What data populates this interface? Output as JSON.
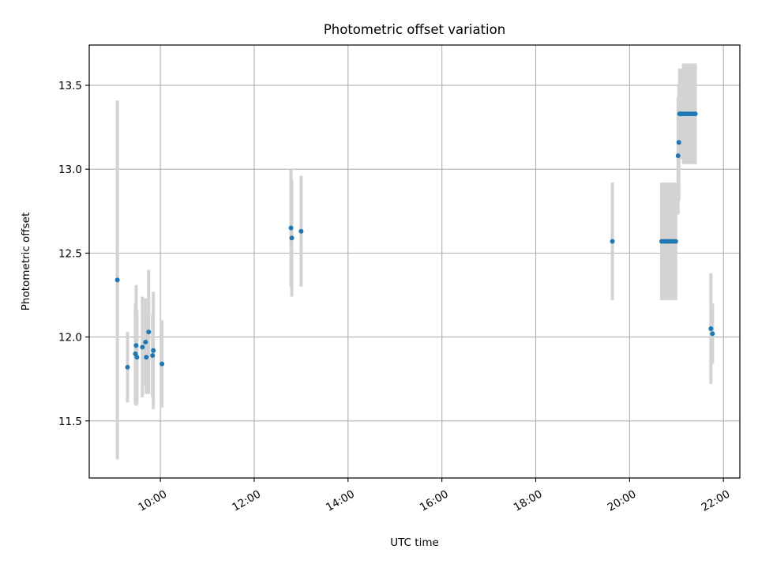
{
  "chart_data": {
    "type": "scatter",
    "title": "Photometric offset variation",
    "xlabel": "UTC time",
    "ylabel": "Photometric offset",
    "x_tick_labels": [
      "10:00",
      "12:00",
      "14:00",
      "16:00",
      "18:00",
      "20:00",
      "22:00"
    ],
    "x_tick_values": [
      "10:00",
      "12:00",
      "14:00",
      "16:00",
      "18:00",
      "20:00",
      "22:00"
    ],
    "y_tick_labels": [
      "11.5",
      "12.0",
      "12.5",
      "13.0",
      "13.5"
    ],
    "y_tick_values": [
      11.5,
      12.0,
      12.5,
      13.0,
      13.5
    ],
    "xlim": [
      "08:29",
      "22:21"
    ],
    "ylim": [
      11.16,
      13.74
    ],
    "grid": true,
    "point_color": "#1f77b4",
    "errorbar_color": "#d3d3d3",
    "points": [
      {
        "x": "09:05",
        "y": 12.34,
        "err": 1.07
      },
      {
        "x": "09:18",
        "y": 11.82,
        "err": 0.21
      },
      {
        "x": "09:28",
        "y": 11.9,
        "err": 0.3
      },
      {
        "x": "09:29",
        "y": 11.95,
        "err": 0.36
      },
      {
        "x": "09:30",
        "y": 11.88,
        "err": 0.28
      },
      {
        "x": "09:37",
        "y": 11.94,
        "err": 0.3
      },
      {
        "x": "09:41",
        "y": 11.97,
        "err": 0.26
      },
      {
        "x": "09:42",
        "y": 11.88,
        "err": 0.22
      },
      {
        "x": "09:45",
        "y": 12.03,
        "err": 0.37
      },
      {
        "x": "09:50",
        "y": 11.89,
        "err": 0.25
      },
      {
        "x": "09:51",
        "y": 11.92,
        "err": 0.35
      },
      {
        "x": "10:02",
        "y": 11.84,
        "err": 0.26
      },
      {
        "x": "12:47",
        "y": 12.65,
        "err": 0.35
      },
      {
        "x": "12:48",
        "y": 12.59,
        "err": 0.35
      },
      {
        "x": "13:00",
        "y": 12.63,
        "err": 0.33
      },
      {
        "x": "19:38",
        "y": 12.57,
        "err": 0.35
      },
      {
        "x": "20:41",
        "y": 12.57,
        "err": 0.35
      },
      {
        "x": "20:44",
        "y": 12.57,
        "err": 0.35
      },
      {
        "x": "20:47",
        "y": 12.57,
        "err": 0.35
      },
      {
        "x": "20:50",
        "y": 12.57,
        "err": 0.35
      },
      {
        "x": "20:53",
        "y": 12.57,
        "err": 0.35
      },
      {
        "x": "20:56",
        "y": 12.57,
        "err": 0.35
      },
      {
        "x": "20:59",
        "y": 12.57,
        "err": 0.35
      },
      {
        "x": "21:02",
        "y": 13.08,
        "err": 0.35
      },
      {
        "x": "21:03",
        "y": 13.16,
        "err": 0.35
      },
      {
        "x": "21:04",
        "y": 13.33,
        "err": 0.27
      },
      {
        "x": "21:06",
        "y": 13.33,
        "err": 0.27
      },
      {
        "x": "21:09",
        "y": 13.33,
        "err": 0.3
      },
      {
        "x": "21:12",
        "y": 13.33,
        "err": 0.3
      },
      {
        "x": "21:15",
        "y": 13.33,
        "err": 0.3
      },
      {
        "x": "21:18",
        "y": 13.33,
        "err": 0.3
      },
      {
        "x": "21:21",
        "y": 13.33,
        "err": 0.3
      },
      {
        "x": "21:24",
        "y": 13.33,
        "err": 0.3
      },
      {
        "x": "21:44",
        "y": 12.05,
        "err": 0.33
      },
      {
        "x": "21:46",
        "y": 12.02,
        "err": 0.18
      }
    ]
  }
}
